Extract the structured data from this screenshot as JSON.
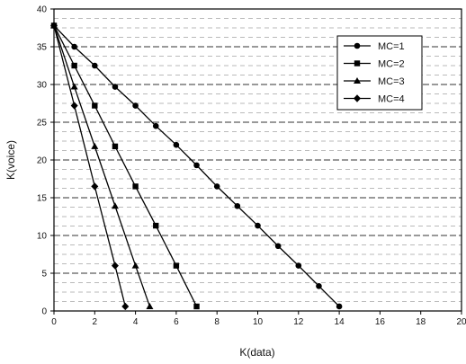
{
  "chart_data": {
    "type": "line",
    "xlabel": "K(data)",
    "ylabel": "K(voice)",
    "xlim": [
      0,
      20
    ],
    "ylim": [
      0,
      40
    ],
    "xticks": [
      0,
      2,
      4,
      6,
      8,
      10,
      12,
      14,
      16,
      18,
      20
    ],
    "yticks": [
      0,
      5,
      10,
      15,
      20,
      25,
      30,
      35,
      40
    ],
    "grid": true,
    "legend_position": "top-right",
    "series": [
      {
        "name": "MC=1",
        "marker": "circle",
        "x": [
          0,
          1,
          2,
          3,
          4,
          5,
          6,
          7,
          8,
          9,
          10,
          11,
          12,
          13,
          14
        ],
        "y": [
          37.8,
          35,
          32.5,
          29.7,
          27.2,
          24.5,
          22,
          19.3,
          16.5,
          13.9,
          11.3,
          8.6,
          6,
          3.3,
          0.6
        ]
      },
      {
        "name": "MC=2",
        "marker": "square",
        "x": [
          0,
          1,
          2,
          3,
          4,
          5,
          6,
          7
        ],
        "y": [
          37.8,
          32.5,
          27.2,
          21.8,
          16.5,
          11.3,
          6,
          0.6
        ]
      },
      {
        "name": "MC=3",
        "marker": "triangle",
        "x": [
          0,
          1,
          2,
          3,
          4,
          4.7
        ],
        "y": [
          37.8,
          29.7,
          21.8,
          13.9,
          6,
          0.6
        ]
      },
      {
        "name": "MC=4",
        "marker": "diamond",
        "x": [
          0,
          1,
          2,
          3,
          3.5
        ],
        "y": [
          37.8,
          27.2,
          16.5,
          6,
          0.6
        ]
      }
    ]
  }
}
